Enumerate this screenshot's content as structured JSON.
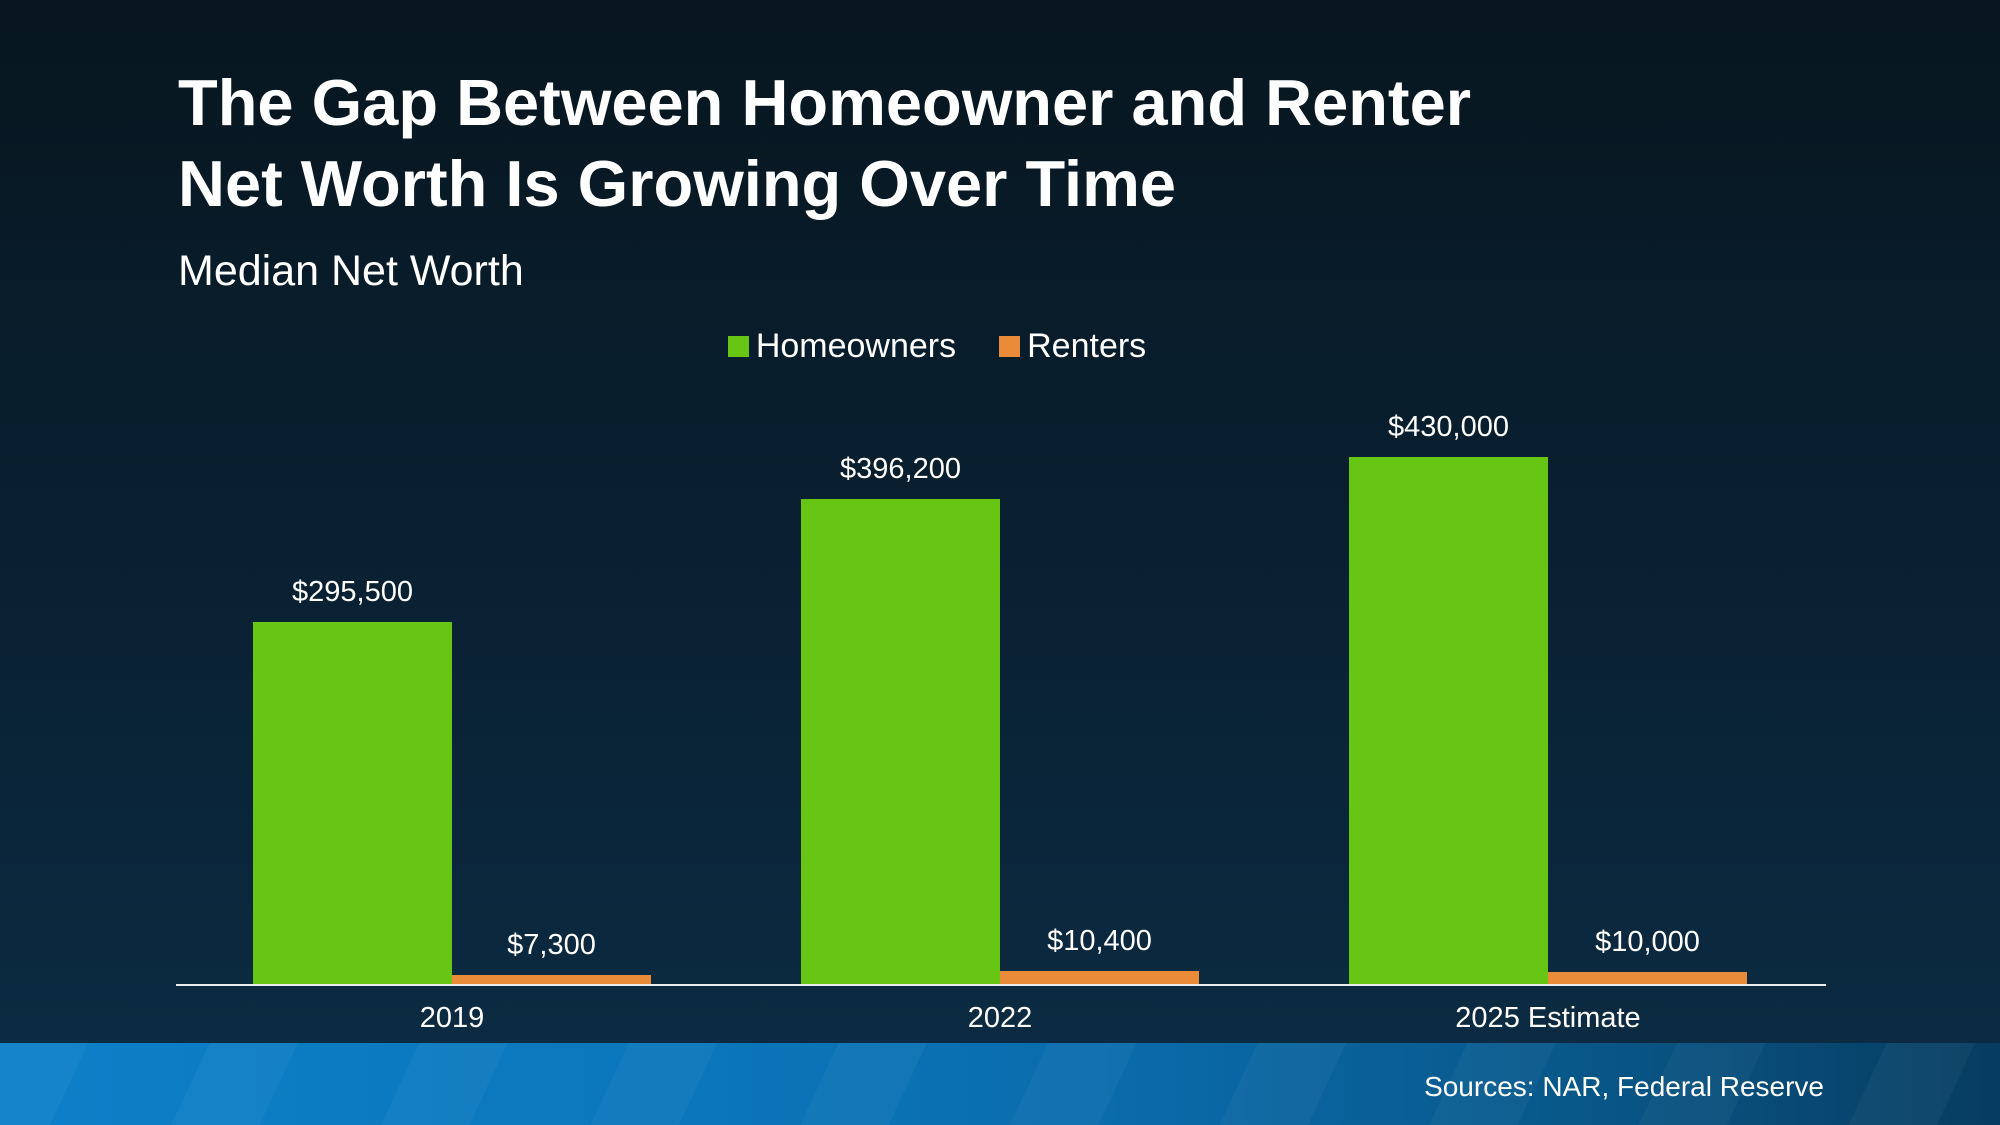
{
  "slide": {
    "title_line1": "The Gap Between Homeowner and Renter",
    "title_line2": "Net Worth Is Growing Over Time",
    "subtitle": "Median Net Worth",
    "sources": "Sources: NAR, Federal Reserve"
  },
  "colors": {
    "background_top": "#07161f",
    "background_bottom": "#0c2c44",
    "homeowners_green": "#66c613",
    "renters_orange": "#ea8b3a",
    "axis_line": "#e9edf0",
    "footer_strip_left": "#0d80c9",
    "footer_strip_right": "#073c5f",
    "text": "#ffffff"
  },
  "chart_data": {
    "type": "bar",
    "title": "Median Net Worth",
    "categories": [
      "2019",
      "2022",
      "2025 Estimate"
    ],
    "series": [
      {
        "name": "Homeowners",
        "color": "#66c613",
        "values": [
          295500,
          396200,
          430000
        ],
        "value_labels": [
          "$295,500",
          "$396,200",
          "$430,000"
        ]
      },
      {
        "name": "Renters",
        "color": "#ea8b3a",
        "values": [
          7300,
          10400,
          10000
        ],
        "value_labels": [
          "$7,300",
          "$10,400",
          "$10,000"
        ]
      }
    ],
    "legend_position": "top-center",
    "grid": false,
    "y_axis_visible": false,
    "value_labels_shown": true,
    "ylim": [
      0,
      450000
    ]
  }
}
